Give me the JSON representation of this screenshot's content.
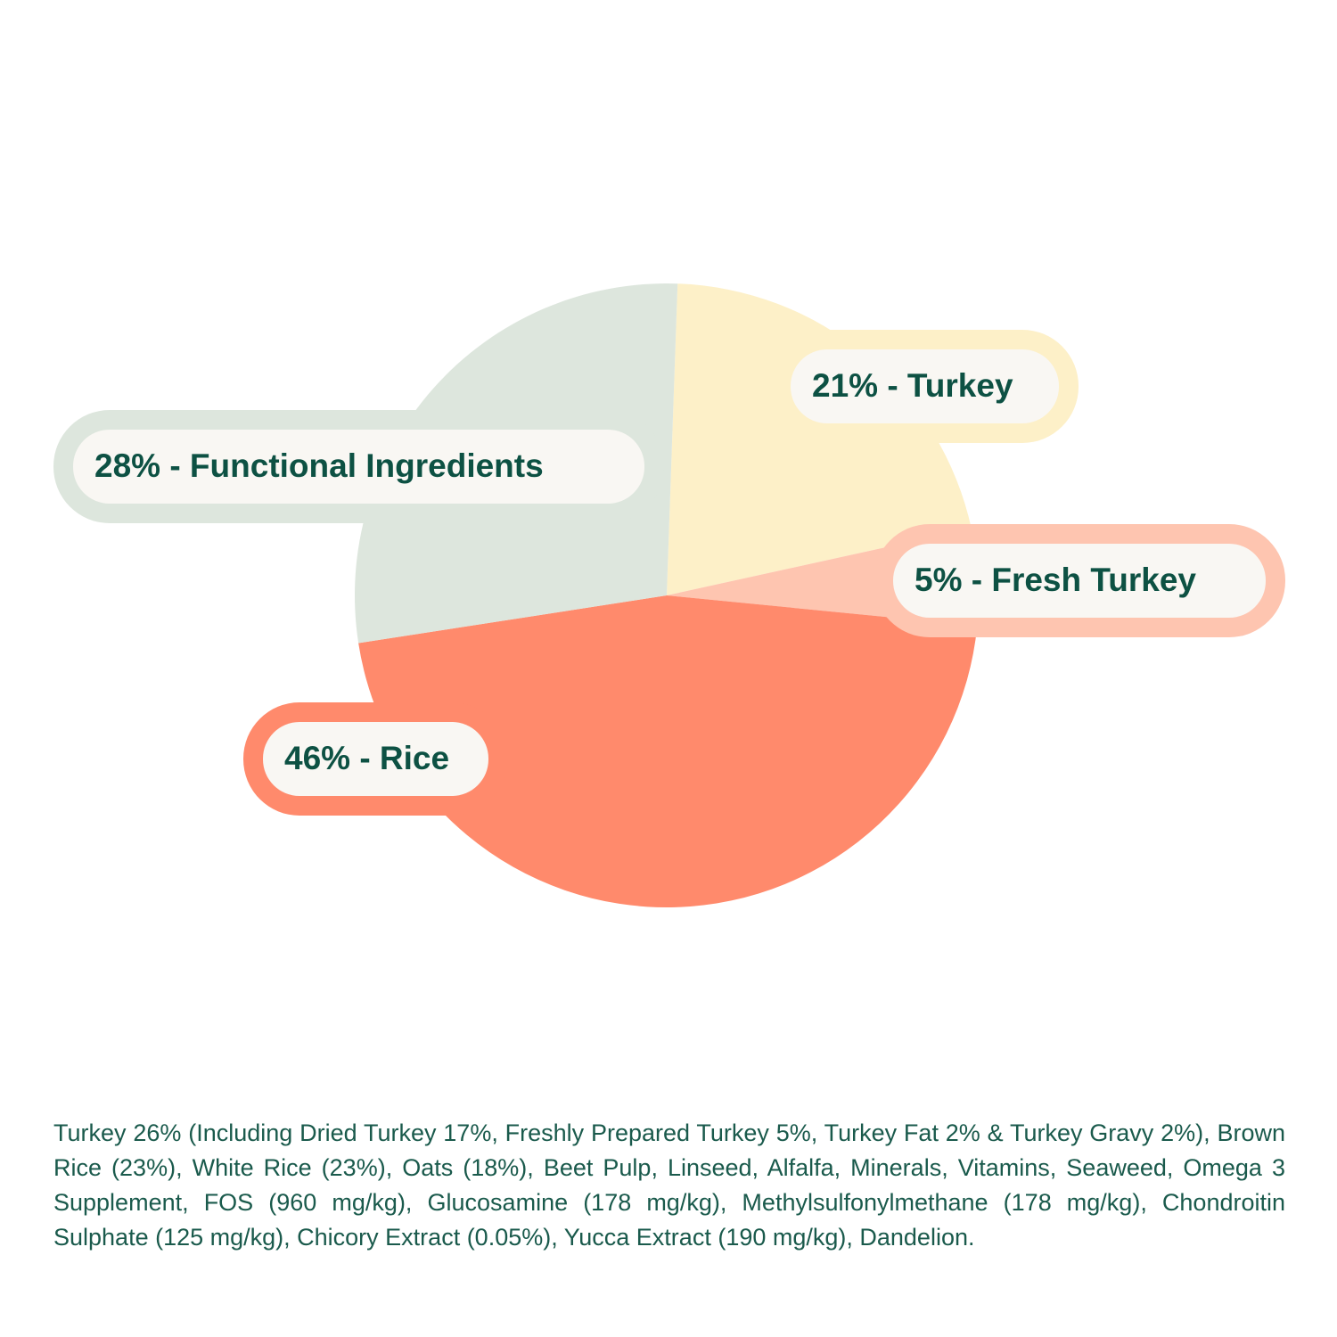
{
  "chart_data": {
    "type": "pie",
    "values": [
      21,
      5,
      46,
      28
    ],
    "value_labels": [
      "21% - Turkey",
      "5% - Fresh Turkey",
      "46% - Rice",
      "28% - Functional Ingredients"
    ],
    "colors": [
      "#fdf0c8",
      "#fec5b0",
      "#ff8a6c",
      "#dde6dd"
    ]
  },
  "ingredients": "Turkey 26% (Including Dried Turkey 17%, Freshly Prepared Turkey 5%, Turkey Fat 2% & Turkey Gravy 2%), Brown Rice (23%), White Rice (23%), Oats (18%), Beet Pulp, Linseed, Alfalfa, Minerals, Vitamins, Seaweed, Omega 3 Supplement, FOS (960 mg/kg), Glucosamine (178 mg/kg), Methylsulfonylmethane (178 mg/kg), Chondroitin Sulphate (125 mg/kg), Chicory Extract (0.05%), Yucca Extract (190 mg/kg), Dandelion."
}
